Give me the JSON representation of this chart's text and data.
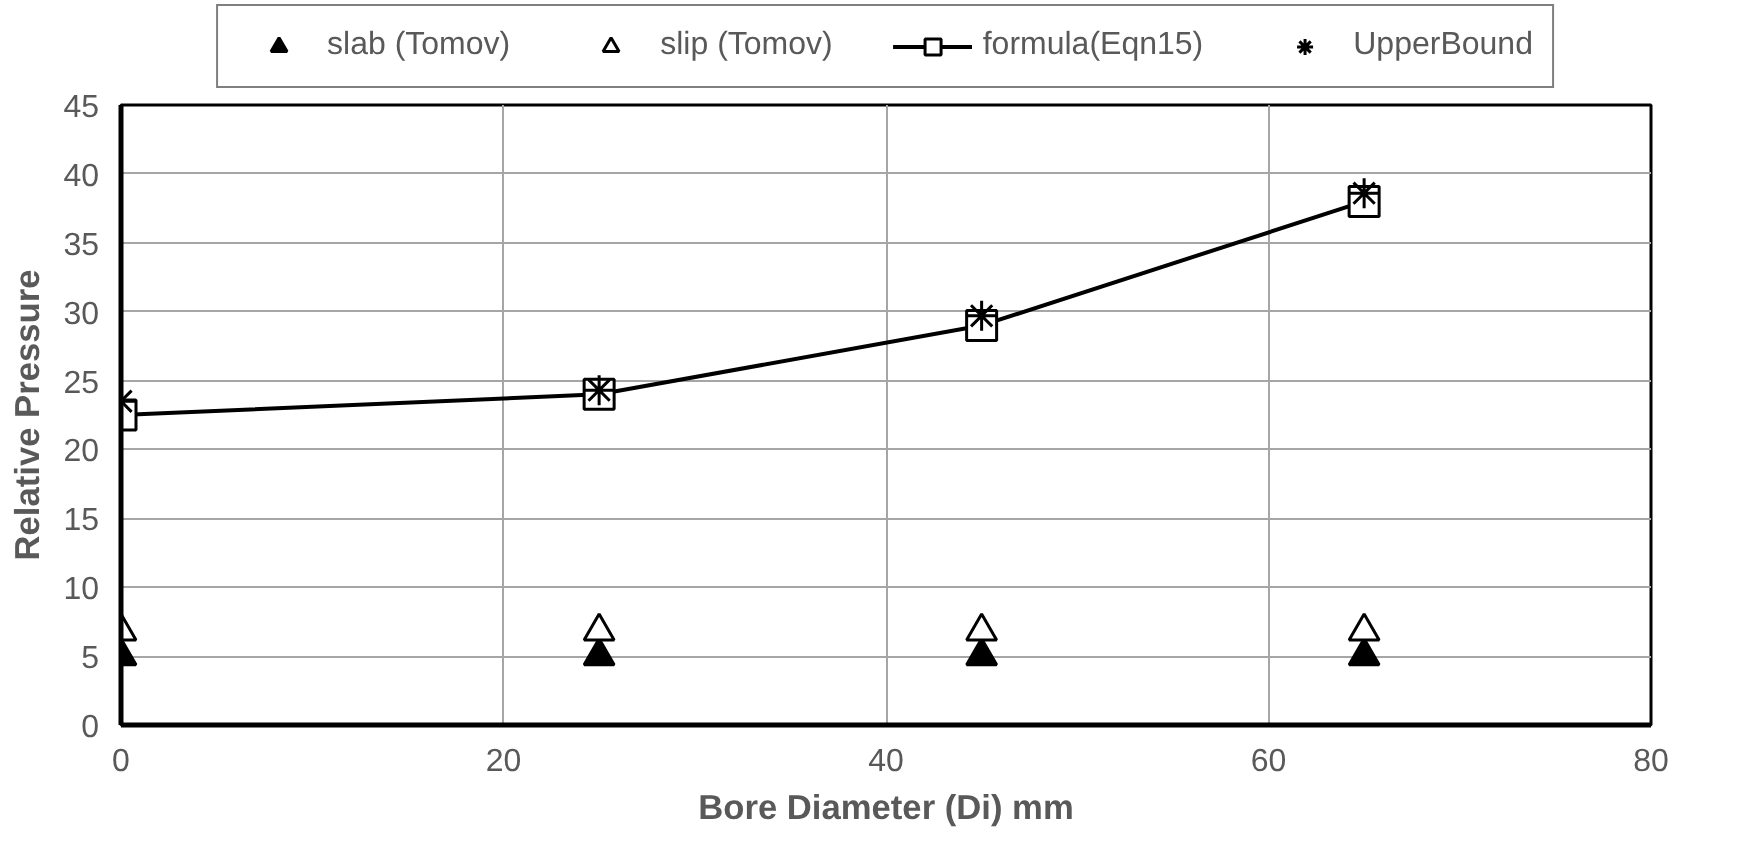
{
  "chart_data": {
    "type": "scatter",
    "xlabel": "Bore Diameter (Di) mm",
    "ylabel": "Relative Pressure",
    "xlim": [
      0,
      80
    ],
    "xticks": [
      0,
      20,
      40,
      60,
      80
    ],
    "ylim": [
      0,
      45
    ],
    "yticks": [
      0,
      5,
      10,
      15,
      20,
      25,
      30,
      35,
      40,
      45
    ],
    "grid": true,
    "legend": "top",
    "series": [
      {
        "name": "slab (Tomov)",
        "marker": "triangle",
        "color": "#000000",
        "x": [
          0,
          25,
          45,
          65
        ],
        "values": [
          5,
          5,
          5,
          5
        ]
      },
      {
        "name": "slip (Tomov)",
        "marker": "triangle",
        "color": "#ffffff",
        "x": [
          0,
          25,
          45,
          65
        ],
        "values": [
          6.8,
          6.8,
          6.8,
          6.8
        ]
      },
      {
        "name": "formula(Eqn15)",
        "type": "line",
        "marker": "square",
        "color": "#000000",
        "x": [
          0,
          25,
          45,
          65
        ],
        "values": [
          22.5,
          24,
          29,
          38
        ]
      },
      {
        "name": "UpperBound",
        "marker": "cross",
        "color": "#000000",
        "x": [
          0,
          25,
          45,
          65
        ],
        "values": [
          23.5,
          24.3,
          29.7,
          38.6
        ]
      }
    ]
  }
}
